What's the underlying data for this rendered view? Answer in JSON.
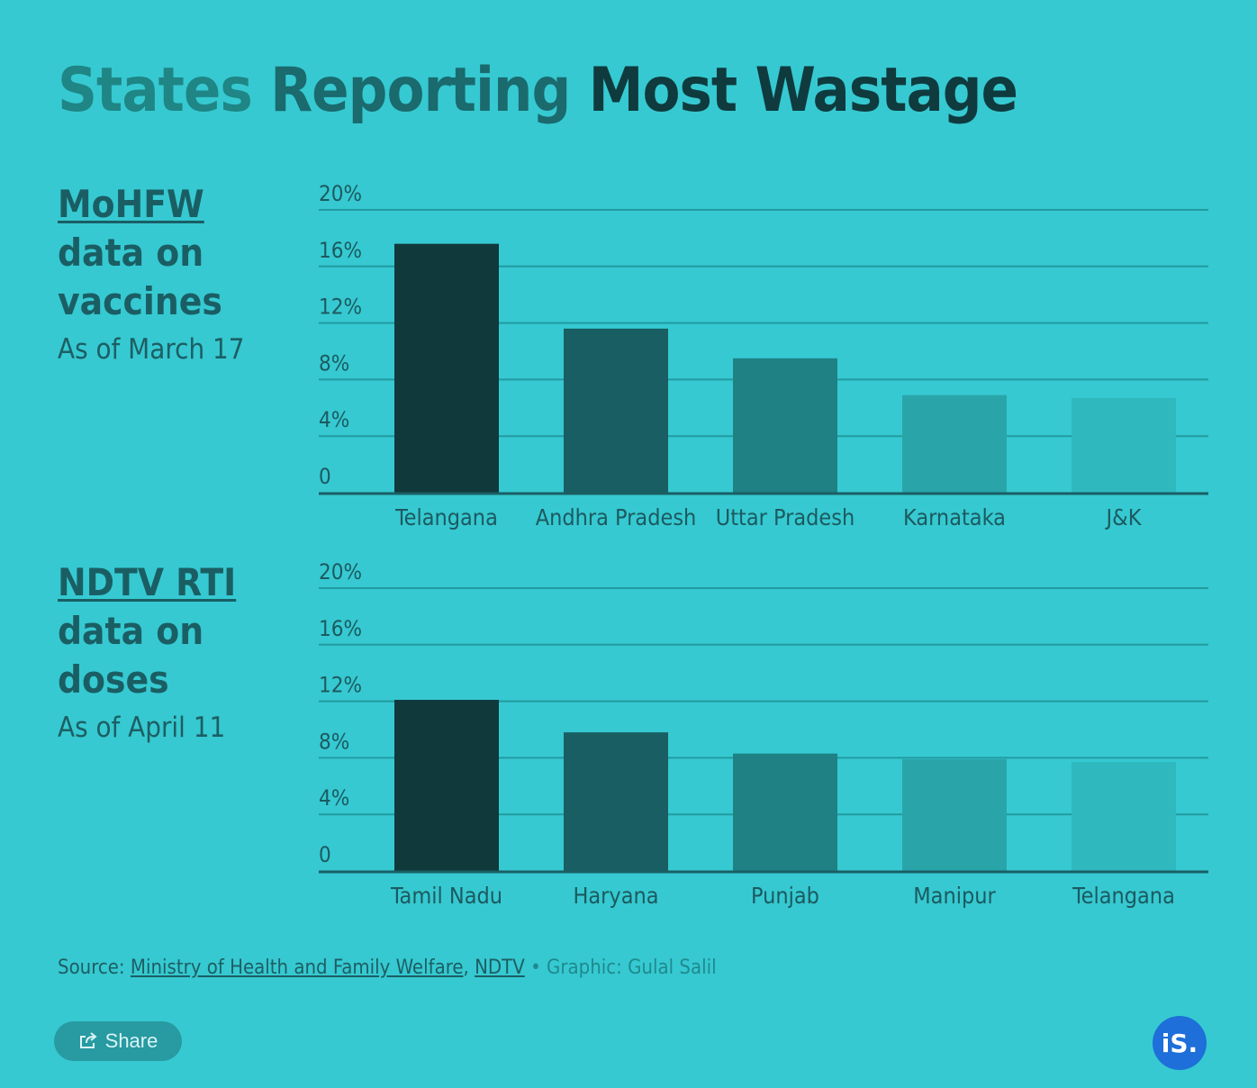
{
  "title": {
    "part1": "States",
    "part2": "Reporting",
    "part3": "Most Wastage"
  },
  "panels": [
    {
      "source": "MoHFW",
      "line1": "data on",
      "line2": "vaccines",
      "date": "As of March 17"
    },
    {
      "source": "NDTV RTI",
      "line1": "data on",
      "line2": "doses",
      "date": "As of April 11"
    }
  ],
  "chart_data": [
    {
      "type": "bar",
      "categories": [
        "Telangana",
        "Andhra Pradesh",
        "Uttar Pradesh",
        "Karnataka",
        "J&K"
      ],
      "values": [
        17.6,
        11.6,
        9.5,
        6.9,
        6.7
      ],
      "yticks": [
        "0",
        "4%",
        "8%",
        "12%",
        "16%",
        "20%"
      ],
      "ylim": [
        0,
        20
      ],
      "colors": [
        "#10393c",
        "#185e62",
        "#1f8184",
        "#29a5aa",
        "#2fb9bf"
      ],
      "grid": true
    },
    {
      "type": "bar",
      "categories": [
        "Tamil Nadu",
        "Haryana",
        "Punjab",
        "Manipur",
        "Telangana"
      ],
      "values": [
        12.1,
        9.8,
        8.3,
        7.9,
        7.7
      ],
      "yticks": [
        "0",
        "4%",
        "8%",
        "12%",
        "16%",
        "20%"
      ],
      "ylim": [
        0,
        20
      ],
      "colors": [
        "#10393c",
        "#185e62",
        "#1f8184",
        "#29a5aa",
        "#2fb9bf"
      ],
      "grid": true
    }
  ],
  "footer": {
    "source_label": "Source: ",
    "link1": "Ministry of Health and Family Welfare",
    "sep": ", ",
    "link2": "NDTV",
    "credit": " • Graphic: Gulal Salil"
  },
  "share_label": "Share",
  "logo_text": "iS."
}
